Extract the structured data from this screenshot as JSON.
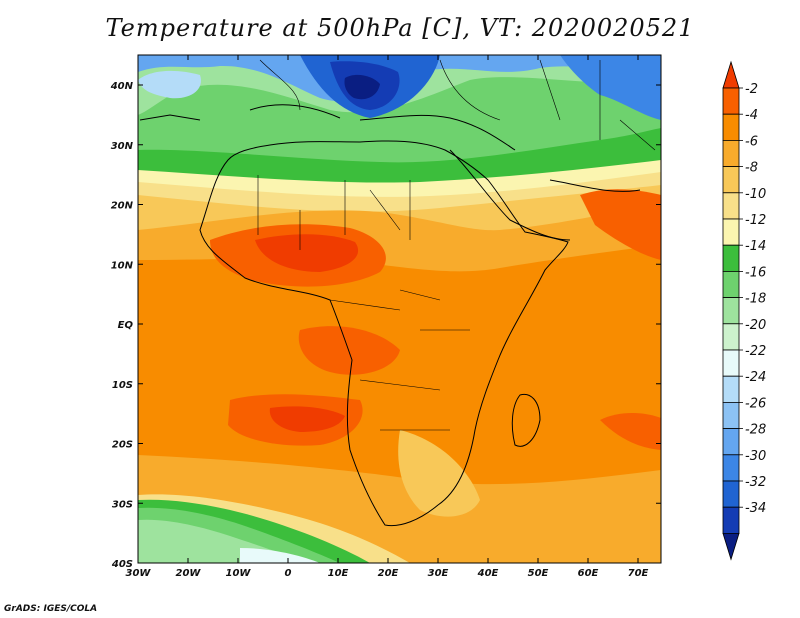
{
  "title": "Temperature at 500hPa [C], VT: 2020020521",
  "footer": "GrADS: IGES/COLA",
  "axes": {
    "lon_labels": [
      "30W",
      "20W",
      "10W",
      "0",
      "10E",
      "20E",
      "30E",
      "40E",
      "50E",
      "60E",
      "70E"
    ],
    "lat_labels": [
      "40N",
      "30N",
      "20N",
      "10N",
      "EQ",
      "10S",
      "20S",
      "30S",
      "40S"
    ]
  },
  "colorbar": {
    "labels": [
      "-2",
      "-4",
      "-6",
      "-8",
      "-10",
      "-12",
      "-14",
      "-16",
      "-18",
      "-20",
      "-22",
      "-24",
      "-26",
      "-28",
      "-30",
      "-32",
      "-34"
    ],
    "colors": [
      "#f03c00",
      "#f86000",
      "#f88c00",
      "#f8ab2c",
      "#f8c858",
      "#f8e08a",
      "#fbf5b0",
      "#3cbe3c",
      "#6ed26e",
      "#9ee39e",
      "#cdf2cd",
      "#e8fafa",
      "#b4dcf8",
      "#8cc2f4",
      "#64a6f0",
      "#3c86e6",
      "#2064d2",
      "#143cb4",
      "#0a1e82",
      "#e6e6fa"
    ]
  }
}
